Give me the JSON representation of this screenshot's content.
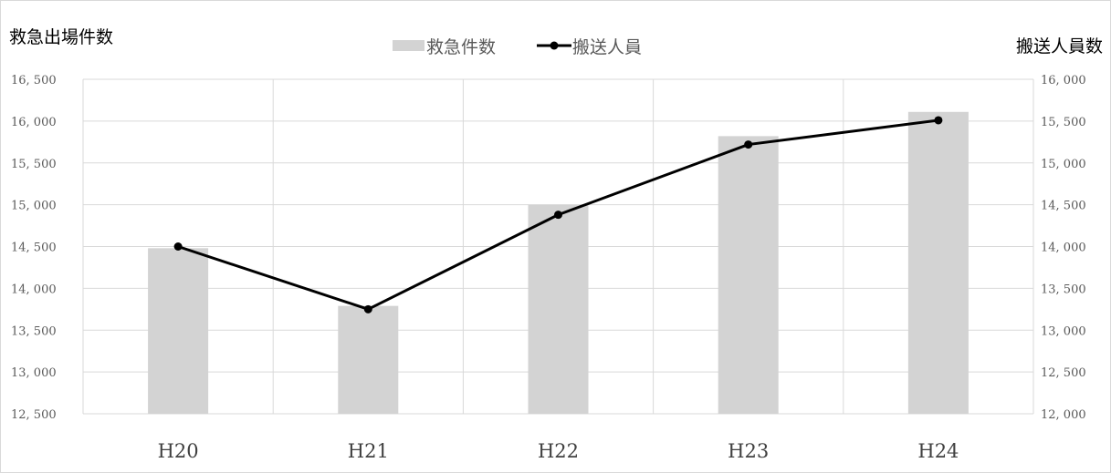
{
  "chart_data": {
    "type": "bar",
    "categories": [
      "H20",
      "H21",
      "H22",
      "H23",
      "H24"
    ],
    "series": [
      {
        "name": "救急件数",
        "type": "bar",
        "axis": "left",
        "values": [
          14480,
          13790,
          15000,
          15820,
          16110
        ],
        "color": "#d3d3d3"
      },
      {
        "name": "搬送人員",
        "type": "line",
        "axis": "right",
        "values": [
          14000,
          13250,
          14380,
          15220,
          15510
        ],
        "color": "#000000"
      }
    ],
    "y_left": {
      "label": "救急出場件数",
      "range": [
        12500,
        16500
      ],
      "step": 500,
      "ticks": [
        "12, 500",
        "13, 000",
        "13, 500",
        "14, 000",
        "14, 500",
        "15, 000",
        "15, 500",
        "16, 000",
        "16, 500"
      ]
    },
    "y_right": {
      "label": "搬送人員数",
      "range": [
        12000,
        16000
      ],
      "step": 500,
      "ticks": [
        "12, 000",
        "12, 500",
        "13, 000",
        "13, 500",
        "14, 000",
        "14, 500",
        "15, 000",
        "15, 500",
        "16, 000"
      ]
    },
    "grid": true,
    "legend_position": "top"
  }
}
